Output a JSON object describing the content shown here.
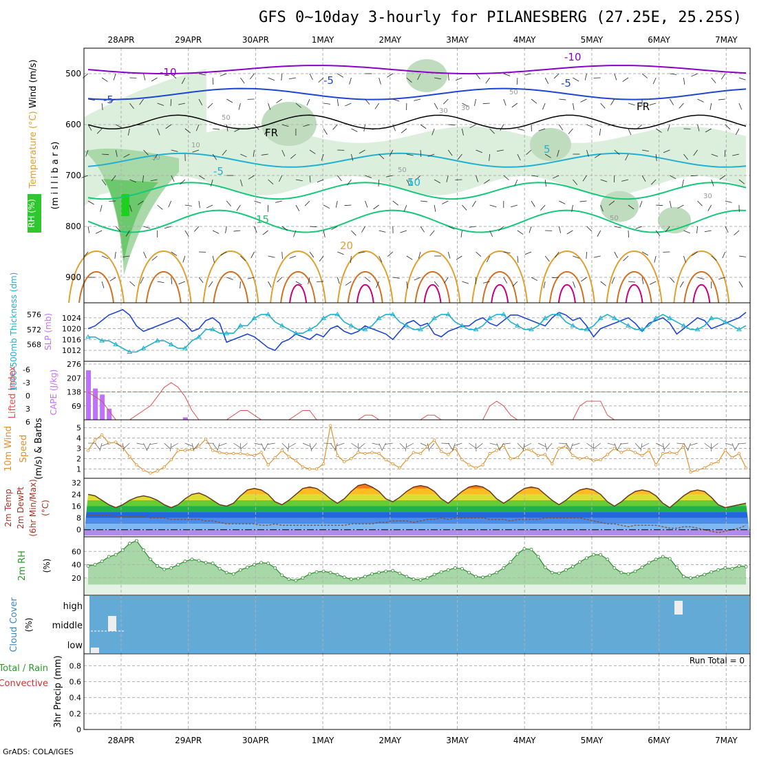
{
  "title": "GFS 0~10day 3-hourly for PILANESBERG (27.25E, 25.25S)",
  "footer": "GrADS: COLA/IGES",
  "dates": [
    "28APR",
    "29APR",
    "30APR",
    "1MAY",
    "2MAY",
    "3MAY",
    "4MAY",
    "5MAY",
    "6MAY",
    "7MAY"
  ],
  "colors": {
    "purple": "#8a00c8",
    "blue": "#1e46d2",
    "teal": "#20b0d0",
    "green": "#14c87a",
    "orange": "#e0a030",
    "darkorange": "#d07020",
    "magenta": "#c8007e",
    "rh": "#2ec82e",
    "lifted": "#e05050",
    "cape": "#c070ff",
    "wind": "#e09030",
    "cloud": "#64aad6"
  },
  "chart_data": [
    {
      "type": "contour",
      "panel": "upper-air",
      "ylabel_parts": [
        "Wind (m/s)",
        "Temperature (°C)"
      ],
      "ylabel_units": "(m i l l i b a r s)",
      "rh_label": "RH (%)",
      "yticks": [
        500,
        600,
        700,
        800,
        900
      ],
      "ylim": [
        450,
        950
      ],
      "isotherm_labels": [
        "-10",
        "-10",
        "-5",
        "-5",
        "-5",
        "FR",
        "FR",
        "5",
        "-5",
        "5",
        "10",
        "15",
        "20"
      ],
      "rh_labels": [
        "50",
        "30",
        "10",
        "30",
        "50",
        "50",
        "30",
        "50",
        "30"
      ]
    },
    {
      "type": "line",
      "panel": "slp-thickness",
      "ylabel_left": "1000-500mb Thickness (dm)",
      "ylabel_right": "SLP (mb)",
      "thickness_ticks": [
        568,
        572,
        576
      ],
      "slp_ticks": [
        1012,
        1016,
        1020,
        1024
      ],
      "series": [
        {
          "name": "SLP (mb)",
          "values": [
            1020,
            1021,
            1023,
            1025,
            1026,
            1027,
            1025,
            1021,
            1019,
            1020,
            1021,
            1022,
            1023,
            1024,
            1022,
            1019,
            1020,
            1023,
            1024,
            1022,
            1015,
            1016,
            1017,
            1018,
            1017,
            1015,
            1013,
            1012,
            1015,
            1016,
            1018,
            1017,
            1016,
            1018,
            1017,
            1020,
            1021,
            1019,
            1018,
            1019,
            1021,
            1020,
            1019,
            1018,
            1016,
            1019,
            1022,
            1023,
            1021,
            1022,
            1018,
            1017,
            1019,
            1020,
            1021,
            1021,
            1023,
            1024,
            1022,
            1021,
            1023,
            1025,
            1025,
            1024,
            1023,
            1022,
            1021,
            1024,
            1026,
            1025,
            1023,
            1024,
            1021,
            1017,
            1020,
            1021,
            1022,
            1023,
            1024,
            1022,
            1019,
            1022,
            1023,
            1024,
            1022,
            1018,
            1020,
            1022,
            1024,
            1023,
            1020,
            1021,
            1022,
            1023,
            1024,
            1026
          ]
        },
        {
          "name": "1000-500mb Thickness (dm)",
          "values": [
            570,
            570,
            569,
            569,
            568,
            567,
            566,
            566,
            567,
            568,
            569,
            569,
            568,
            567,
            567,
            569,
            570,
            572,
            572,
            571,
            571,
            571,
            573,
            573,
            575,
            576,
            576,
            574,
            573,
            572,
            571,
            571,
            572,
            573,
            575,
            576,
            576,
            574,
            573,
            572,
            572,
            573,
            575,
            576,
            576,
            574,
            573,
            572,
            572,
            573,
            575,
            576,
            576,
            574,
            573,
            572,
            572,
            573,
            575,
            576,
            576,
            574,
            573,
            572,
            572,
            573,
            575,
            576,
            576,
            574,
            573,
            572,
            572,
            573,
            575,
            576,
            575,
            574,
            573,
            572,
            572,
            573,
            575,
            576,
            575,
            574,
            573,
            572,
            572,
            573,
            575,
            575,
            574,
            573,
            572,
            573
          ]
        }
      ]
    },
    {
      "type": "bar",
      "panel": "cape-lifted",
      "ylabel_left": "Lifted Index",
      "ylabel_right": "CAPE (J/kg)",
      "li_ticks": [
        "-6",
        "-3",
        "0",
        "3",
        "6"
      ],
      "cape_ticks": [
        69,
        138,
        207,
        276
      ],
      "series": [
        {
          "name": "CAPE (J/kg)",
          "values": [
            245,
            155,
            125,
            55,
            0,
            0,
            0,
            0,
            0,
            0,
            0,
            0,
            0,
            0,
            12,
            0,
            0,
            0,
            0,
            0,
            0,
            0,
            0,
            0,
            0,
            0,
            0,
            0,
            0,
            0,
            0,
            0,
            0,
            0,
            0,
            0,
            0,
            0,
            0,
            0,
            0,
            0,
            0,
            0,
            0,
            0,
            0,
            0,
            0,
            0,
            0,
            0,
            0,
            0,
            0,
            0,
            0,
            0,
            0,
            0,
            0,
            0,
            0,
            0,
            0,
            0,
            0,
            0,
            0,
            0,
            0,
            0,
            0,
            0,
            0,
            0,
            0,
            0,
            0,
            0,
            0,
            0,
            0,
            0,
            0,
            0,
            0,
            0,
            0,
            0,
            0,
            0,
            0,
            0,
            0,
            0
          ]
        },
        {
          "name": "Lifted Index",
          "values": [
            0,
            1,
            2,
            4,
            6,
            6,
            6,
            5,
            4,
            3,
            1,
            -1,
            -2,
            -1,
            1,
            4,
            6,
            6,
            6,
            6,
            6,
            5,
            4,
            4,
            5,
            6,
            6,
            6,
            6,
            6,
            5,
            4,
            4,
            6,
            6,
            6,
            6,
            6,
            6,
            6,
            5,
            5,
            6,
            6,
            6,
            6,
            6,
            6,
            6,
            5,
            5,
            6,
            6,
            6,
            6,
            6,
            6,
            6,
            3,
            2,
            3,
            5,
            6,
            6,
            6,
            6,
            6,
            6,
            6,
            6,
            6,
            3,
            2,
            2,
            2,
            5,
            6,
            6,
            6,
            6,
            6,
            6,
            6,
            6,
            6,
            6,
            6,
            6,
            6,
            6,
            6,
            6,
            6,
            6,
            6,
            6
          ]
        }
      ]
    },
    {
      "type": "line",
      "panel": "wind10m",
      "ylabel_parts": [
        "10m Wind",
        "Speed",
        "(m/s)",
        "& Barbs"
      ],
      "yticks": [
        1,
        2,
        3,
        4,
        5
      ],
      "series": [
        {
          "name": "10m Wind Speed (m/s)",
          "values": [
            2.8,
            3.8,
            4.3,
            3.5,
            3.6,
            3.1,
            2.2,
            1.4,
            0.9,
            0.6,
            0.8,
            1.2,
            1.9,
            2.8,
            2.8,
            2.9,
            3.2,
            3.9,
            2.8,
            2.6,
            2.5,
            2.5,
            2.5,
            2.4,
            2.3,
            2.6,
            1.4,
            2.1,
            2.8,
            2.2,
            1.8,
            1.2,
            1.0,
            1.0,
            1.5,
            5.2,
            2.3,
            1.7,
            2.0,
            2.6,
            2.5,
            2.6,
            2.5,
            1.9,
            1.5,
            1.1,
            1.9,
            2.6,
            2.5,
            3.2,
            3.8,
            2.7,
            2.4,
            3.0,
            1.9,
            1.4,
            1.1,
            1.4,
            2.5,
            2.8,
            3.3,
            2.0,
            2.1,
            2.9,
            2.8,
            2.3,
            2.4,
            1.5,
            3.0,
            3.2,
            2.3,
            2.0,
            2.1,
            1.8,
            1.9,
            2.4,
            3.0,
            2.6,
            2.9,
            2.6,
            2.3,
            2.8,
            1.4,
            2.5,
            2.6,
            2.5,
            3.3,
            0.7,
            0.9,
            1.1,
            1.5,
            1.7,
            2.8,
            2.1,
            2.5,
            1.1
          ]
        }
      ]
    },
    {
      "type": "area",
      "panel": "temp2m",
      "ylabel_parts": [
        "2m Temp",
        "2m DewPt",
        "(6hr Min/Max)",
        "(°C)"
      ],
      "yticks": [
        0,
        8,
        16,
        24,
        32
      ],
      "series": [
        {
          "name": "2m Temp (°C)",
          "values": [
            24,
            23,
            20,
            17,
            15,
            17,
            20,
            22,
            23,
            22,
            20,
            17,
            15,
            17,
            21,
            24,
            25,
            23,
            20,
            17,
            16,
            18,
            23,
            27,
            28,
            27,
            24,
            19,
            17,
            20,
            24,
            28,
            29,
            28,
            25,
            21,
            18,
            21,
            26,
            30,
            31,
            29,
            26,
            21,
            19,
            22,
            26,
            29,
            30,
            29,
            26,
            21,
            18,
            22,
            26,
            29,
            30,
            29,
            26,
            21,
            18,
            21,
            25,
            28,
            29,
            28,
            24,
            20,
            17,
            20,
            24,
            27,
            28,
            27,
            24,
            19,
            16,
            19,
            23,
            26,
            27,
            26,
            23,
            18,
            15,
            19,
            23,
            26,
            27,
            26,
            22,
            17,
            15,
            16,
            17,
            18
          ]
        },
        {
          "name": "2m DewPt (°C)",
          "values": [
            10,
            10,
            10,
            10,
            9,
            9,
            9,
            9,
            9,
            8,
            8,
            8,
            7,
            7,
            7,
            7,
            7,
            6,
            6,
            5,
            4,
            4,
            4,
            4,
            4,
            3,
            3,
            4,
            3,
            3,
            3,
            3,
            3,
            3,
            3,
            3,
            3,
            3,
            4,
            4,
            4,
            4,
            5,
            5,
            6,
            6,
            6,
            5,
            6,
            7,
            7,
            8,
            7,
            8,
            8,
            8,
            8,
            8,
            7,
            7,
            7,
            6,
            7,
            7,
            7,
            7,
            8,
            8,
            8,
            8,
            8,
            8,
            7,
            6,
            5,
            4,
            4,
            3,
            2,
            3,
            3,
            3,
            3,
            2,
            1,
            1,
            2,
            2,
            1,
            0,
            -1,
            -2,
            -1,
            0,
            1,
            3
          ]
        }
      ]
    },
    {
      "type": "area",
      "panel": "rh2m",
      "ylabel": "2m RH",
      "yunits": "(%)",
      "yticks": [
        20,
        40,
        60
      ],
      "series": [
        {
          "name": "2m RH (%)",
          "values": [
            38,
            40,
            45,
            52,
            55,
            62,
            72,
            76,
            62,
            48,
            38,
            33,
            35,
            40,
            45,
            48,
            46,
            43,
            42,
            34,
            28,
            26,
            32,
            36,
            40,
            43,
            42,
            35,
            24,
            18,
            16,
            20,
            26,
            29,
            30,
            28,
            25,
            21,
            18,
            19,
            22,
            26,
            28,
            30,
            31,
            27,
            22,
            18,
            17,
            20,
            25,
            29,
            32,
            35,
            34,
            28,
            22,
            21,
            24,
            28,
            35,
            44,
            56,
            64,
            63,
            52,
            36,
            28,
            27,
            32,
            37,
            44,
            50,
            55,
            55,
            48,
            35,
            28,
            26,
            30,
            36,
            43,
            48,
            52,
            49,
            36,
            22,
            20,
            22,
            25,
            29,
            32,
            35,
            34,
            38,
            37
          ]
        }
      ]
    },
    {
      "type": "bar",
      "panel": "cloud",
      "ylabel": "Cloud Cover",
      "yunits": "(%)",
      "levels": [
        "high",
        "middle",
        "low"
      ],
      "notes": "white bars = cloud fraction on blue background"
    },
    {
      "type": "bar",
      "panel": "precip",
      "ylabel_parts": [
        "Total / Rain",
        "Convective",
        "3hr Precip (mm)"
      ],
      "yticks": [
        "0",
        "0.2",
        "0.4",
        "0.6",
        "0.8"
      ],
      "run_total": "Run Total = 0"
    }
  ]
}
